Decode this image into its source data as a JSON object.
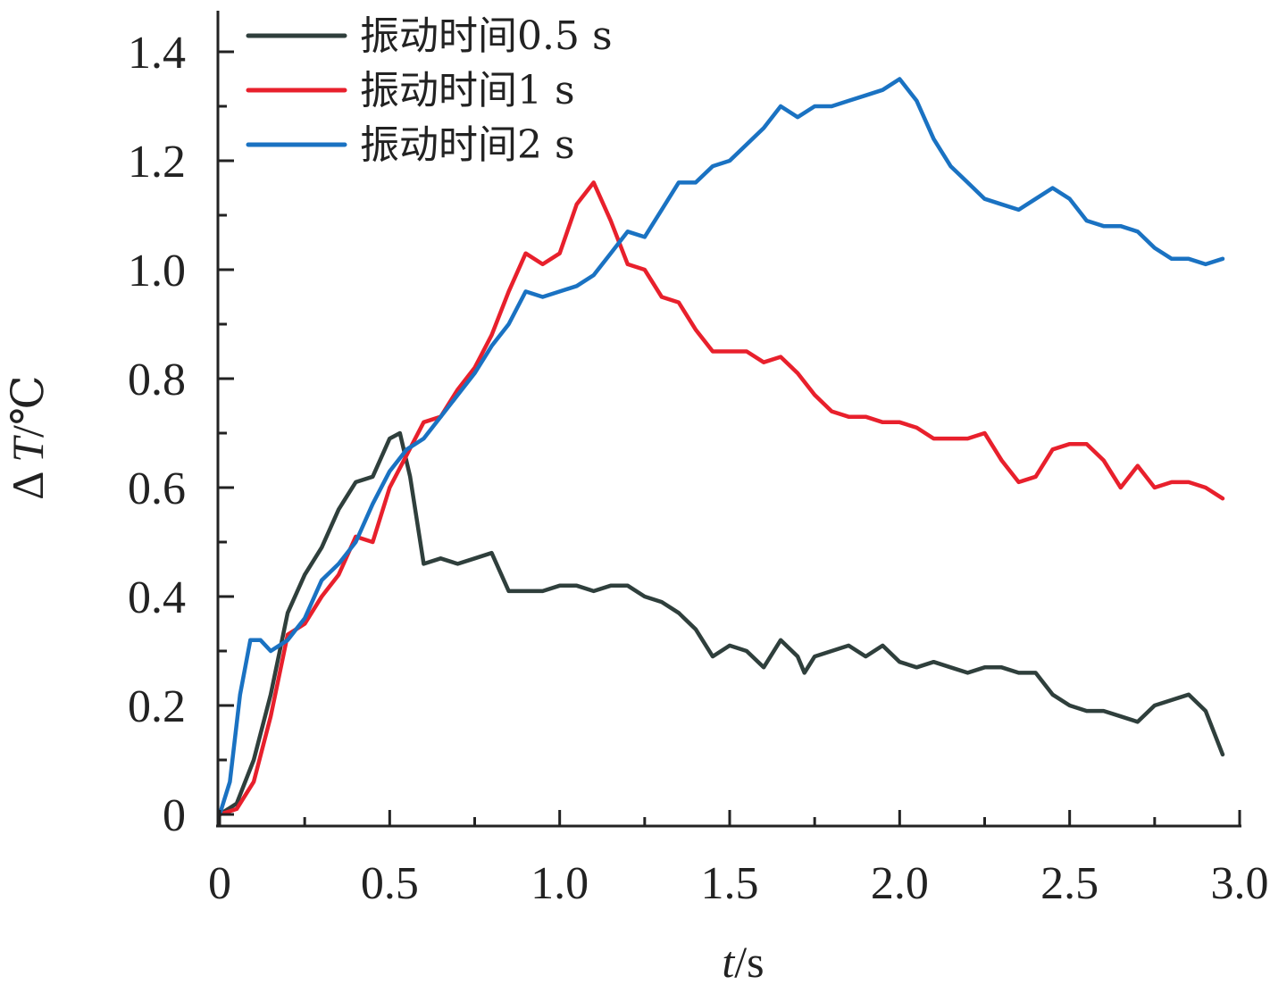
{
  "chart_data": {
    "type": "line",
    "xlabel_italic": "t",
    "xlabel_unit": "/s",
    "ylabel_prefix": "Δ ",
    "ylabel_italic": "T",
    "ylabel_unit": "/℃",
    "xlim": [
      0,
      3.0
    ],
    "ylim": [
      0,
      1.4
    ],
    "xticks": [
      0,
      0.5,
      1.0,
      1.5,
      2.0,
      2.5,
      3.0
    ],
    "xtick_labels": [
      "0",
      "0.5",
      "1.0",
      "1.5",
      "2.0",
      "2.5",
      "3.0"
    ],
    "yticks": [
      0,
      0.2,
      0.4,
      0.6,
      0.8,
      1.0,
      1.2,
      1.4
    ],
    "ytick_labels": [
      "0",
      "0.2",
      "0.4",
      "0.6",
      "0.8",
      "1.0",
      "1.2",
      "1.4"
    ],
    "grid": false,
    "legend_position": "top-left",
    "series": [
      {
        "name": "振动时间0.5 s",
        "color": "#2f3f3c",
        "points": [
          [
            0.0,
            0.0
          ],
          [
            0.05,
            0.02
          ],
          [
            0.1,
            0.1
          ],
          [
            0.15,
            0.22
          ],
          [
            0.2,
            0.37
          ],
          [
            0.25,
            0.44
          ],
          [
            0.3,
            0.49
          ],
          [
            0.35,
            0.56
          ],
          [
            0.4,
            0.61
          ],
          [
            0.45,
            0.62
          ],
          [
            0.5,
            0.69
          ],
          [
            0.53,
            0.7
          ],
          [
            0.56,
            0.62
          ],
          [
            0.6,
            0.46
          ],
          [
            0.65,
            0.47
          ],
          [
            0.7,
            0.46
          ],
          [
            0.75,
            0.47
          ],
          [
            0.8,
            0.48
          ],
          [
            0.85,
            0.41
          ],
          [
            0.9,
            0.41
          ],
          [
            0.95,
            0.41
          ],
          [
            1.0,
            0.42
          ],
          [
            1.05,
            0.42
          ],
          [
            1.1,
            0.41
          ],
          [
            1.15,
            0.42
          ],
          [
            1.2,
            0.42
          ],
          [
            1.25,
            0.4
          ],
          [
            1.3,
            0.39
          ],
          [
            1.35,
            0.37
          ],
          [
            1.4,
            0.34
          ],
          [
            1.45,
            0.29
          ],
          [
            1.5,
            0.31
          ],
          [
            1.55,
            0.3
          ],
          [
            1.6,
            0.27
          ],
          [
            1.65,
            0.32
          ],
          [
            1.7,
            0.29
          ],
          [
            1.72,
            0.26
          ],
          [
            1.75,
            0.29
          ],
          [
            1.8,
            0.3
          ],
          [
            1.85,
            0.31
          ],
          [
            1.9,
            0.29
          ],
          [
            1.95,
            0.31
          ],
          [
            2.0,
            0.28
          ],
          [
            2.05,
            0.27
          ],
          [
            2.1,
            0.28
          ],
          [
            2.15,
            0.27
          ],
          [
            2.2,
            0.26
          ],
          [
            2.25,
            0.27
          ],
          [
            2.3,
            0.27
          ],
          [
            2.35,
            0.26
          ],
          [
            2.4,
            0.26
          ],
          [
            2.45,
            0.22
          ],
          [
            2.5,
            0.2
          ],
          [
            2.55,
            0.19
          ],
          [
            2.6,
            0.19
          ],
          [
            2.65,
            0.18
          ],
          [
            2.7,
            0.17
          ],
          [
            2.75,
            0.2
          ],
          [
            2.8,
            0.21
          ],
          [
            2.85,
            0.22
          ],
          [
            2.9,
            0.19
          ],
          [
            2.95,
            0.11
          ]
        ]
      },
      {
        "name": "振动时间1 s",
        "color": "#e8202c",
        "points": [
          [
            0.0,
            0.0
          ],
          [
            0.05,
            0.01
          ],
          [
            0.1,
            0.06
          ],
          [
            0.15,
            0.18
          ],
          [
            0.2,
            0.33
          ],
          [
            0.25,
            0.35
          ],
          [
            0.3,
            0.4
          ],
          [
            0.35,
            0.44
          ],
          [
            0.4,
            0.51
          ],
          [
            0.45,
            0.5
          ],
          [
            0.5,
            0.6
          ],
          [
            0.55,
            0.66
          ],
          [
            0.6,
            0.72
          ],
          [
            0.65,
            0.73
          ],
          [
            0.7,
            0.78
          ],
          [
            0.75,
            0.82
          ],
          [
            0.8,
            0.88
          ],
          [
            0.85,
            0.96
          ],
          [
            0.9,
            1.03
          ],
          [
            0.95,
            1.01
          ],
          [
            1.0,
            1.03
          ],
          [
            1.05,
            1.12
          ],
          [
            1.1,
            1.16
          ],
          [
            1.15,
            1.09
          ],
          [
            1.2,
            1.01
          ],
          [
            1.25,
            1.0
          ],
          [
            1.3,
            0.95
          ],
          [
            1.35,
            0.94
          ],
          [
            1.4,
            0.89
          ],
          [
            1.45,
            0.85
          ],
          [
            1.5,
            0.85
          ],
          [
            1.55,
            0.85
          ],
          [
            1.6,
            0.83
          ],
          [
            1.65,
            0.84
          ],
          [
            1.7,
            0.81
          ],
          [
            1.75,
            0.77
          ],
          [
            1.8,
            0.74
          ],
          [
            1.85,
            0.73
          ],
          [
            1.9,
            0.73
          ],
          [
            1.95,
            0.72
          ],
          [
            2.0,
            0.72
          ],
          [
            2.05,
            0.71
          ],
          [
            2.1,
            0.69
          ],
          [
            2.15,
            0.69
          ],
          [
            2.2,
            0.69
          ],
          [
            2.25,
            0.7
          ],
          [
            2.3,
            0.65
          ],
          [
            2.35,
            0.61
          ],
          [
            2.4,
            0.62
          ],
          [
            2.45,
            0.67
          ],
          [
            2.5,
            0.68
          ],
          [
            2.55,
            0.68
          ],
          [
            2.6,
            0.65
          ],
          [
            2.65,
            0.6
          ],
          [
            2.7,
            0.64
          ],
          [
            2.75,
            0.6
          ],
          [
            2.8,
            0.61
          ],
          [
            2.85,
            0.61
          ],
          [
            2.9,
            0.6
          ],
          [
            2.95,
            0.58
          ]
        ]
      },
      {
        "name": "振动时间2 s",
        "color": "#1a72c2",
        "points": [
          [
            0.0,
            0.0
          ],
          [
            0.03,
            0.06
          ],
          [
            0.06,
            0.22
          ],
          [
            0.09,
            0.32
          ],
          [
            0.12,
            0.32
          ],
          [
            0.15,
            0.3
          ],
          [
            0.2,
            0.32
          ],
          [
            0.25,
            0.36
          ],
          [
            0.3,
            0.43
          ],
          [
            0.35,
            0.46
          ],
          [
            0.4,
            0.5
          ],
          [
            0.45,
            0.57
          ],
          [
            0.5,
            0.63
          ],
          [
            0.55,
            0.67
          ],
          [
            0.6,
            0.69
          ],
          [
            0.65,
            0.73
          ],
          [
            0.7,
            0.77
          ],
          [
            0.75,
            0.81
          ],
          [
            0.8,
            0.86
          ],
          [
            0.85,
            0.9
          ],
          [
            0.9,
            0.96
          ],
          [
            0.95,
            0.95
          ],
          [
            1.0,
            0.96
          ],
          [
            1.05,
            0.97
          ],
          [
            1.1,
            0.99
          ],
          [
            1.15,
            1.03
          ],
          [
            1.2,
            1.07
          ],
          [
            1.25,
            1.06
          ],
          [
            1.3,
            1.11
          ],
          [
            1.35,
            1.16
          ],
          [
            1.4,
            1.16
          ],
          [
            1.45,
            1.19
          ],
          [
            1.5,
            1.2
          ],
          [
            1.55,
            1.23
          ],
          [
            1.6,
            1.26
          ],
          [
            1.65,
            1.3
          ],
          [
            1.7,
            1.28
          ],
          [
            1.75,
            1.3
          ],
          [
            1.8,
            1.3
          ],
          [
            1.85,
            1.31
          ],
          [
            1.9,
            1.32
          ],
          [
            1.95,
            1.33
          ],
          [
            2.0,
            1.35
          ],
          [
            2.05,
            1.31
          ],
          [
            2.1,
            1.24
          ],
          [
            2.15,
            1.19
          ],
          [
            2.2,
            1.16
          ],
          [
            2.25,
            1.13
          ],
          [
            2.3,
            1.12
          ],
          [
            2.35,
            1.11
          ],
          [
            2.4,
            1.13
          ],
          [
            2.45,
            1.15
          ],
          [
            2.5,
            1.13
          ],
          [
            2.55,
            1.09
          ],
          [
            2.6,
            1.08
          ],
          [
            2.65,
            1.08
          ],
          [
            2.7,
            1.07
          ],
          [
            2.75,
            1.04
          ],
          [
            2.8,
            1.02
          ],
          [
            2.85,
            1.02
          ],
          [
            2.9,
            1.01
          ],
          [
            2.95,
            1.02
          ]
        ]
      }
    ]
  }
}
